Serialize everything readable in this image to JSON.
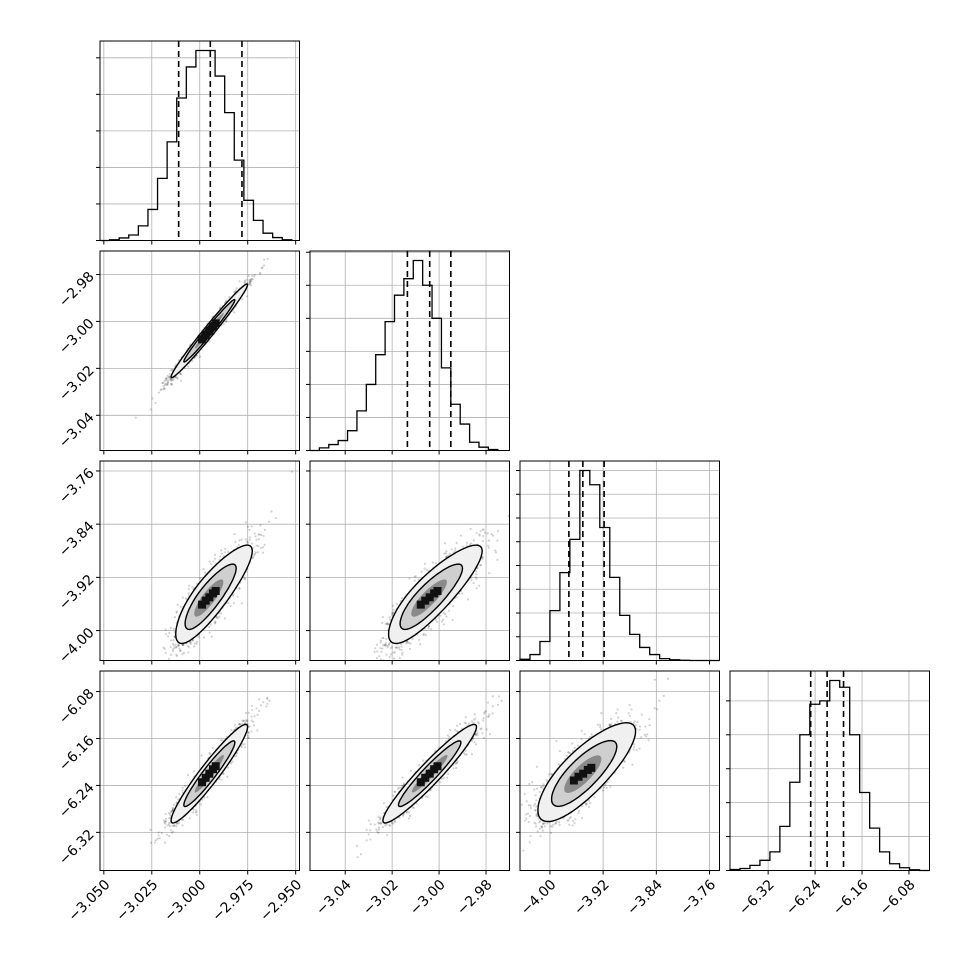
{
  "figure": {
    "type": "corner-plot",
    "n_parameters": 4
  },
  "chart_data": {
    "type": "corner",
    "parameters": [
      {
        "index": 0,
        "range": [
          -3.052,
          -2.948
        ],
        "ticks": [
          -3.05,
          -3.025,
          -3.0,
          -2.975,
          -2.95
        ],
        "tick_labels": [
          "−3.050",
          "−3.025",
          "−3.000",
          "−2.975",
          "−2.950"
        ],
        "quantiles": [
          -3.011,
          -2.9945,
          -2.978
        ],
        "histogram": {
          "edges": [
            -3.052,
            -3.047,
            -3.042,
            -3.037,
            -3.032,
            -3.027,
            -3.022,
            -3.017,
            -3.012,
            -3.007,
            -3.002,
            -2.997,
            -2.992,
            -2.987,
            -2.982,
            -2.977,
            -2.972,
            -2.967,
            -2.962,
            -2.957,
            -2.952
          ],
          "counts": [
            0,
            2,
            7,
            15,
            40,
            85,
            170,
            270,
            390,
            475,
            520,
            520,
            450,
            350,
            220,
            110,
            55,
            20,
            8,
            2
          ]
        }
      },
      {
        "index": 1,
        "range": [
          -3.055,
          -2.97
        ],
        "ticks": [
          -3.04,
          -3.02,
          -3.0,
          -2.98
        ],
        "tick_labels": [
          "−3.04",
          "−3.02",
          "−3.00",
          "−2.98"
        ],
        "quantiles": [
          -3.0135,
          -3.004,
          -2.995
        ],
        "histogram": {
          "edges": [
            -3.055,
            -3.051,
            -3.047,
            -3.043,
            -3.039,
            -3.035,
            -3.031,
            -3.027,
            -3.023,
            -3.019,
            -3.015,
            -3.011,
            -3.007,
            -3.003,
            -2.999,
            -2.995,
            -2.991,
            -2.987,
            -2.983,
            -2.979,
            -2.975
          ],
          "counts": [
            0,
            8,
            18,
            30,
            60,
            120,
            200,
            290,
            390,
            470,
            520,
            575,
            500,
            400,
            250,
            140,
            80,
            25,
            10,
            3
          ]
        }
      },
      {
        "index": 2,
        "range": [
          -4.045,
          -3.745
        ],
        "ticks": [
          -4.0,
          -3.92,
          -3.84,
          -3.76
        ],
        "tick_labels": [
          "−4.00",
          "−3.92",
          "−3.84",
          "−3.76"
        ],
        "quantiles": [
          -3.9715,
          -3.9505,
          -3.9185
        ],
        "histogram": {
          "edges": [
            -4.045,
            -4.03,
            -4.015,
            -4.0,
            -3.985,
            -3.97,
            -3.955,
            -3.94,
            -3.925,
            -3.91,
            -3.895,
            -3.88,
            -3.865,
            -3.85,
            -3.835,
            -3.82,
            -3.805,
            -3.79,
            -3.775,
            -3.76,
            -3.745
          ],
          "counts": [
            5,
            25,
            80,
            210,
            370,
            510,
            800,
            740,
            560,
            350,
            190,
            110,
            55,
            25,
            8,
            3,
            1,
            0,
            0,
            0
          ]
        }
      },
      {
        "index": 3,
        "range": [
          -6.385,
          -6.045
        ],
        "ticks": [
          -6.32,
          -6.24,
          -6.16,
          -6.08
        ],
        "tick_labels": [
          "−6.32",
          "−6.24",
          "−6.16",
          "−6.08"
        ],
        "quantiles": [
          -6.2475,
          -6.2195,
          -6.1915
        ],
        "histogram": {
          "edges": [
            -6.385,
            -6.368,
            -6.351,
            -6.334,
            -6.317,
            -6.3,
            -6.283,
            -6.266,
            -6.249,
            -6.232,
            -6.215,
            -6.198,
            -6.181,
            -6.164,
            -6.147,
            -6.13,
            -6.113,
            -6.096,
            -6.079,
            -6.062,
            -6.045
          ],
          "counts": [
            3,
            6,
            15,
            30,
            55,
            130,
            260,
            400,
            490,
            500,
            560,
            540,
            400,
            230,
            125,
            55,
            20,
            8,
            2,
            0
          ]
        }
      }
    ],
    "pairs": [
      {
        "x": 0,
        "y": 1,
        "center": [
          -2.995,
          -3.004
        ],
        "sd": [
          0.0095,
          0.0095
        ],
        "corr": 0.985
      },
      {
        "x": 0,
        "y": 2,
        "center": [
          -2.995,
          -3.95
        ],
        "sd": [
          0.0095,
          0.035
        ],
        "corr": 0.85,
        "skew": 0.5
      },
      {
        "x": 1,
        "y": 2,
        "center": [
          -3.004,
          -3.95
        ],
        "sd": [
          0.0095,
          0.035
        ],
        "corr": 0.85,
        "skew": 0.5
      },
      {
        "x": 0,
        "y": 3,
        "center": [
          -2.995,
          -6.22
        ],
        "sd": [
          0.0095,
          0.04
        ],
        "corr": 0.95
      },
      {
        "x": 1,
        "y": 3,
        "center": [
          -3.004,
          -6.22
        ],
        "sd": [
          0.0095,
          0.04
        ],
        "corr": 0.95
      },
      {
        "x": 2,
        "y": 3,
        "center": [
          -3.95,
          -6.22
        ],
        "sd": [
          0.035,
          0.04
        ],
        "corr": 0.8,
        "skew": 0.3
      }
    ],
    "title": "",
    "axis_labels": [
      "",
      "",
      "",
      ""
    ],
    "grid": true,
    "legend": null,
    "colors": {
      "line": "#000000",
      "points": "#000000",
      "grid": "#b0b0b0"
    }
  }
}
